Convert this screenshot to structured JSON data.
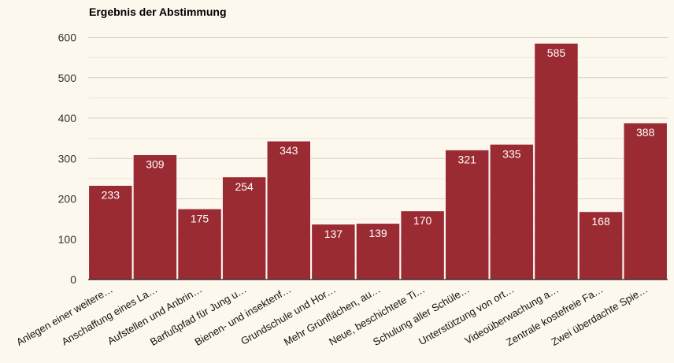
{
  "chart_data": {
    "type": "bar",
    "title": "Ergebnis der Abstimmung",
    "categories": [
      "Anlegen einer weitere…",
      "Anschaffung eines La…",
      "Aufstellen und Anbrin…",
      "Barfußpfad für Jung u…",
      "Bienen- und insektenf…",
      "Grundschule und Hor…",
      "Mehr Grünflächen, au…",
      "Neue, beschichtete Ti…",
      "Schulung aller Schüle…",
      "Unterstützung von ort…",
      "Videoüberwachung a…",
      "Zentrale kostefreie Fa…",
      "Zwei überdachte Spie…"
    ],
    "values": [
      233,
      309,
      175,
      254,
      343,
      137,
      139,
      170,
      321,
      335,
      585,
      168,
      388
    ],
    "yticks": [
      0,
      100,
      200,
      300,
      400,
      500,
      600
    ],
    "ylim": [
      0,
      640
    ],
    "bar_color": "#9b2b33",
    "grid": true
  }
}
